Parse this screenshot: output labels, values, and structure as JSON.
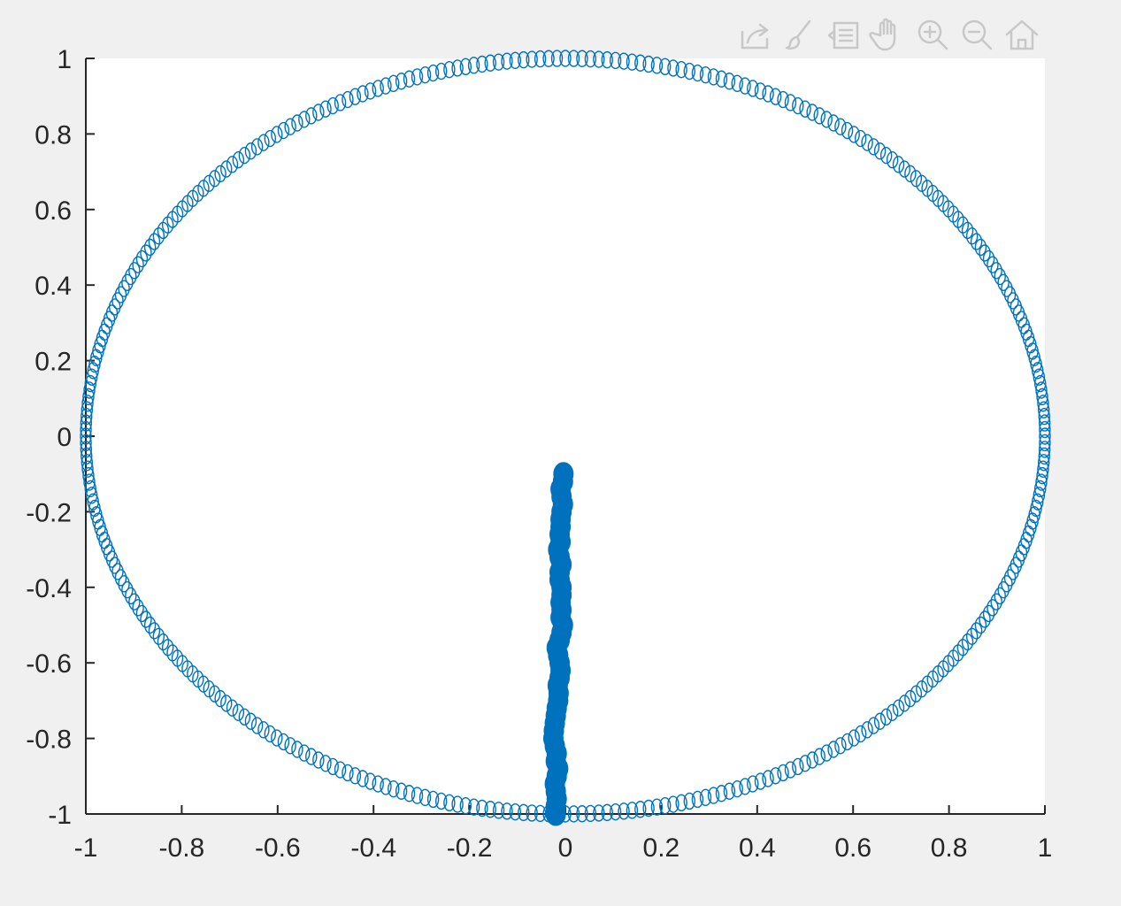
{
  "toolbar": {
    "icons": [
      "export-icon",
      "brush-icon",
      "legend-icon",
      "pan-icon",
      "zoom-in-icon",
      "zoom-out-icon",
      "home-icon"
    ]
  },
  "chart_data": {
    "type": "scatter",
    "title": "",
    "xlabel": "",
    "ylabel": "",
    "xlim": [
      -1,
      1
    ],
    "ylim": [
      -1,
      1
    ],
    "grid": false,
    "x_ticks": [
      -1,
      -0.8,
      -0.6,
      -0.4,
      -0.2,
      0,
      0.2,
      0.4,
      0.6,
      0.8,
      1
    ],
    "y_ticks": [
      -1,
      -0.8,
      -0.6,
      -0.4,
      -0.2,
      0,
      0.2,
      0.4,
      0.6,
      0.8,
      1
    ],
    "x_tick_labels": [
      "-1",
      "-0.8",
      "-0.6",
      "-0.4",
      "-0.2",
      "0",
      "0.2",
      "0.4",
      "0.6",
      "0.8",
      "1"
    ],
    "y_tick_labels": [
      "-1",
      "-0.8",
      "-0.6",
      "-0.4",
      "-0.2",
      "0",
      "0.2",
      "0.4",
      "0.6",
      "0.8",
      "1"
    ],
    "series": [
      {
        "marker": "open-circle",
        "color": "#0072bd",
        "shape": "unit circle",
        "point_count": 360
      },
      {
        "marker": "filled-circle",
        "color": "#0072bd",
        "x": [
          -0.02,
          -0.02,
          -0.018,
          -0.02,
          -0.022,
          -0.018,
          -0.015,
          -0.02,
          -0.018,
          -0.022,
          -0.025,
          -0.024,
          -0.022,
          -0.02,
          -0.018,
          -0.015,
          -0.014,
          -0.016,
          -0.012,
          -0.01,
          -0.012,
          -0.015,
          -0.018,
          -0.012,
          -0.008,
          -0.005,
          -0.01,
          -0.008,
          -0.01,
          -0.008,
          -0.008,
          -0.012,
          -0.012,
          -0.008,
          -0.012,
          -0.015,
          -0.01,
          -0.012,
          -0.01,
          -0.01,
          -0.008,
          -0.005,
          -0.008,
          -0.01,
          -0.005,
          -0.004
        ],
        "y": [
          -1.0,
          -0.98,
          -0.96,
          -0.94,
          -0.92,
          -0.9,
          -0.88,
          -0.86,
          -0.84,
          -0.82,
          -0.8,
          -0.78,
          -0.76,
          -0.74,
          -0.72,
          -0.7,
          -0.68,
          -0.66,
          -0.64,
          -0.62,
          -0.6,
          -0.58,
          -0.56,
          -0.54,
          -0.52,
          -0.5,
          -0.48,
          -0.46,
          -0.44,
          -0.42,
          -0.4,
          -0.38,
          -0.36,
          -0.34,
          -0.32,
          -0.3,
          -0.28,
          -0.26,
          -0.24,
          -0.22,
          -0.2,
          -0.18,
          -0.16,
          -0.14,
          -0.12,
          -0.1
        ]
      }
    ]
  }
}
